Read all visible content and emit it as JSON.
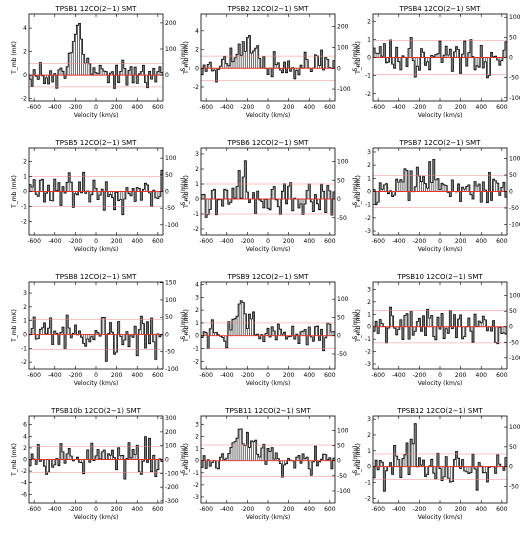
{
  "layout": {
    "columns": 3
  },
  "colors": {
    "spectrum": "#000000",
    "bar_fill": "#555555",
    "zero_line": "#e8302a",
    "rms_line": "#f08a88"
  },
  "common": {
    "xlabel": "Velocity (km/s)",
    "ylabel_left": "T_mb (mK)",
    "ylabel_right": "S_ν (mJy)",
    "xlim": [
      -650,
      650
    ],
    "xticks": [
      -600,
      -400,
      -200,
      0,
      200,
      400,
      600
    ]
  },
  "chart_data": [
    {
      "type": "line",
      "title": "TPSB1 12CO(2−1) SMT",
      "ylim": [
        -2.2,
        5.2
      ],
      "yticks": [
        -2,
        0,
        2,
        4
      ],
      "right_ticks": [
        -100,
        0,
        100,
        200
      ],
      "right_scale": 45,
      "rms": 1.0,
      "seed": 1,
      "noise": 0.9,
      "line": {
        "center": -170,
        "width": 60,
        "amp": 3.5
      },
      "x": [
        -600,
        -500,
        -400,
        -300,
        -250,
        -200,
        -170,
        -150,
        -100,
        0,
        100,
        200,
        300,
        400,
        500,
        600
      ],
      "y": [
        0.2,
        -0.5,
        0.3,
        0.0,
        0.8,
        1.9,
        4.4,
        2.4,
        0.5,
        -0.2,
        0.4,
        -0.6,
        0.3,
        -0.1,
        0.5,
        -0.3
      ]
    },
    {
      "type": "line",
      "title": "TPSB2 12CO(2−1) SMT",
      "ylim": [
        -3.5,
        5.8
      ],
      "yticks": [
        -2,
        0,
        2,
        4
      ],
      "right_ticks": [
        -100,
        0,
        100,
        200
      ],
      "right_scale": 45,
      "rms": 1.3,
      "seed": 2,
      "noise": 1.3,
      "line": {
        "center": -230,
        "width": 110,
        "amp": 1.9
      },
      "x": [
        -600,
        -500,
        -400,
        -300,
        -200,
        -100,
        0,
        100,
        200,
        300,
        400,
        500,
        600
      ],
      "y": [
        0.5,
        -1.0,
        0.8,
        1.9,
        2.4,
        0.3,
        -0.8,
        0.6,
        -1.2,
        0.9,
        -0.4,
        0.7,
        -0.3
      ]
    },
    {
      "type": "line",
      "title": "TPSB4 12CO(2−1) SMT",
      "ylim": [
        -2.4,
        2.4
      ],
      "yticks": [
        -2,
        -1,
        0,
        1,
        2
      ],
      "right_ticks": [
        -100,
        -50,
        0,
        50,
        100
      ],
      "right_scale": 45,
      "rms": 0.95,
      "seed": 3,
      "noise": 0.85,
      "line": {
        "center": 0,
        "width": 50,
        "amp": 0
      },
      "x": [
        -600,
        -400,
        -200,
        0,
        200,
        400,
        600
      ],
      "y": [
        0.3,
        -0.8,
        1.2,
        -0.5,
        0.9,
        -1.1,
        0.4
      ]
    },
    {
      "type": "line",
      "title": "TPSB5 12CO(2−1) SMT",
      "ylim": [
        -2.9,
        2.9
      ],
      "yticks": [
        -2,
        -1,
        0,
        1,
        2
      ],
      "right_ticks": [
        -100,
        -50,
        0,
        50,
        100
      ],
      "right_scale": 45,
      "rms": 1.0,
      "seed": 4,
      "noise": 1.0,
      "line": {
        "center": 0,
        "width": 50,
        "amp": 0
      },
      "x": [
        -600,
        -400,
        -200,
        0,
        200,
        400,
        600
      ],
      "y": [
        0.5,
        -1.2,
        1.5,
        -0.4,
        1.0,
        -1.6,
        0.6
      ]
    },
    {
      "type": "line",
      "title": "TPSB6 12CO(2−1) SMT",
      "ylim": [
        -2.4,
        3.4
      ],
      "yticks": [
        -2,
        -1,
        0,
        1,
        2,
        3
      ],
      "right_ticks": [
        -100,
        -50,
        0,
        50,
        100
      ],
      "right_scale": 40,
      "rms": 1.0,
      "seed": 5,
      "noise": 0.95,
      "line": {
        "center": -230,
        "width": 40,
        "amp": 1.6
      },
      "x": [
        -600,
        -400,
        -230,
        0,
        200,
        400,
        600
      ],
      "y": [
        0.2,
        -0.6,
        2.7,
        -0.9,
        0.6,
        -1.0,
        0.3
      ]
    },
    {
      "type": "line",
      "title": "TPSB7 12CO(2−1) SMT",
      "ylim": [
        -3.3,
        3.3
      ],
      "yticks": [
        -3,
        -2,
        -1,
        0,
        1,
        2,
        3
      ],
      "right_ticks": [
        -100,
        -50,
        0,
        50,
        100
      ],
      "right_scale": 40,
      "rms": 1.2,
      "seed": 6,
      "noise": 1.05,
      "line": {
        "center": -190,
        "width": 120,
        "amp": 1.3
      },
      "x": [
        -600,
        -400,
        -200,
        0,
        200,
        400,
        600
      ],
      "y": [
        -0.3,
        0.9,
        2.1,
        -0.7,
        0.8,
        -1.3,
        0.2
      ]
    },
    {
      "type": "line",
      "title": "TPSB8 12CO(2−1) SMT",
      "ylim": [
        -2.5,
        3.8
      ],
      "yticks": [
        -2,
        -1,
        0,
        1,
        2,
        3
      ],
      "right_ticks": [
        -100,
        -50,
        0,
        50,
        100,
        150
      ],
      "right_scale": 40,
      "rms": 1.1,
      "seed": 7,
      "noise": 1.2,
      "line": {
        "center": 0,
        "width": 50,
        "amp": 0
      },
      "x": [
        -600,
        -400,
        -200,
        0,
        200,
        400,
        600
      ],
      "y": [
        0.8,
        -1.4,
        1.6,
        -0.6,
        2.2,
        -1.7,
        0.5
      ]
    },
    {
      "type": "line",
      "title": "TPSB9 12CO(2−1) SMT",
      "ylim": [
        -2.6,
        4.2
      ],
      "yticks": [
        -2,
        -1,
        0,
        1,
        2,
        3,
        4
      ],
      "right_ticks": [
        -100,
        -50,
        0,
        50,
        100,
        150
      ],
      "right_scale": 35,
      "rms": 1.0,
      "seed": 8,
      "noise": 0.85,
      "line": {
        "center": -250,
        "width": 65,
        "amp": 2.3
      },
      "x": [
        -600,
        -400,
        -250,
        -100,
        0,
        200,
        400,
        600
      ],
      "y": [
        0.3,
        -0.4,
        3.5,
        0.2,
        -0.9,
        0.6,
        -0.8,
        0.4
      ]
    },
    {
      "type": "line",
      "title": "TPSB10 12CO(2−1) SMT",
      "ylim": [
        -3.4,
        3.6
      ],
      "yticks": [
        -3,
        -2,
        -1,
        0,
        1,
        2,
        3
      ],
      "right_ticks": [
        -100,
        -50,
        0,
        50,
        100
      ],
      "right_scale": 40,
      "rms": 1.3,
      "seed": 9,
      "noise": 1.1,
      "line": {
        "center": 0,
        "width": 50,
        "amp": 0
      },
      "x": [
        -600,
        -400,
        -200,
        0,
        200,
        400,
        600
      ],
      "y": [
        0.6,
        -1.1,
        0.9,
        -0.5,
        1.4,
        -1.8,
        0.7
      ]
    },
    {
      "type": "line",
      "title": "TPSB10b 12CO(2−1) SMT",
      "ylim": [
        -7.5,
        7.5
      ],
      "yticks": [
        -6,
        -4,
        -2,
        0,
        2,
        4,
        6
      ],
      "right_ticks": [
        -300,
        -200,
        -100,
        0,
        100,
        200,
        300
      ],
      "right_scale": 42,
      "rms": 2.2,
      "seed": 10,
      "noise": 2.3,
      "line": {
        "center": 0,
        "width": 50,
        "amp": 0
      },
      "x": [
        -600,
        -400,
        -200,
        0,
        200,
        400,
        600
      ],
      "y": [
        1.5,
        -3.0,
        2.2,
        -1.0,
        3.1,
        -4.2,
        1.2
      ]
    },
    {
      "type": "line",
      "title": "TPSB11 12CO(2−1) SMT",
      "ylim": [
        -3.5,
        3.7
      ],
      "yticks": [
        -3,
        -2,
        -1,
        0,
        1,
        2,
        3
      ],
      "right_ticks": [
        -100,
        -50,
        0,
        50,
        100,
        150
      ],
      "right_scale": 40,
      "rms": 1.3,
      "seed": 11,
      "noise": 0.9,
      "line": {
        "center": -230,
        "width": 130,
        "amp": 1.8
      },
      "x": [
        -600,
        -400,
        -230,
        -50,
        100,
        300,
        500,
        600
      ],
      "y": [
        0.2,
        0.9,
        2.6,
        0.5,
        -1.5,
        0.8,
        -1.2,
        0.4
      ]
    },
    {
      "type": "line",
      "title": "TPSB12 12CO(2−1) SMT",
      "ylim": [
        -2.3,
        3.2
      ],
      "yticks": [
        -2,
        -1,
        0,
        1,
        2,
        3
      ],
      "right_ticks": [
        -100,
        -50,
        0,
        50,
        100,
        150
      ],
      "right_scale": 40,
      "rms": 0.8,
      "seed": 12,
      "noise": 0.9,
      "line": {
        "center": -260,
        "width": 40,
        "amp": 1.6
      },
      "x": [
        -600,
        -400,
        -260,
        -100,
        0,
        200,
        400,
        600
      ],
      "y": [
        0.4,
        -0.9,
        2.6,
        0.7,
        -0.6,
        0.5,
        -1.0,
        0.3
      ]
    }
  ]
}
